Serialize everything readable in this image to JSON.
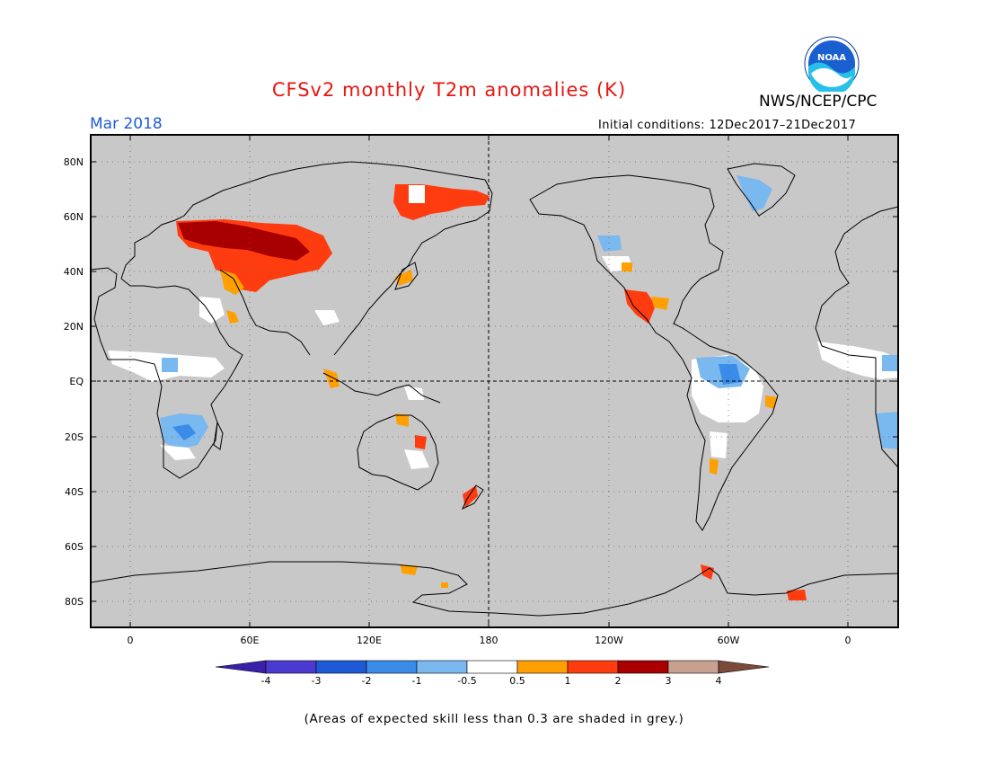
{
  "header": {
    "title": "CFSv2 monthly T2m anomalies (K)",
    "period": "Mar 2018",
    "organization": "NWS/NCEP/CPC",
    "initial_conditions": "Initial conditions: 12Dec2017–21Dec2017",
    "logo_text": "NOAA"
  },
  "map": {
    "lat_labels": [
      "80N",
      "60N",
      "40N",
      "20N",
      "EQ",
      "20S",
      "40S",
      "60S",
      "80S"
    ],
    "lon_labels": [
      "0",
      "60E",
      "120E",
      "180",
      "120W",
      "60W",
      "0"
    ],
    "background_color": "#c8c8c8"
  },
  "colorbar": {
    "labels": [
      "-4",
      "-3",
      "-2",
      "-1",
      "-0.5",
      "0.5",
      "1",
      "2",
      "3",
      "4"
    ],
    "colors": [
      "#3a1fa8",
      "#4a3ad0",
      "#1f5ad6",
      "#3a8ce8",
      "#7ab8f0",
      "#ffffff",
      "#ff9f00",
      "#ff3c10",
      "#a80000",
      "#c8a090",
      "#7a4a3a"
    ]
  },
  "footnote": "(Areas of expected skill less than 0.3 are shaded in grey.)"
}
